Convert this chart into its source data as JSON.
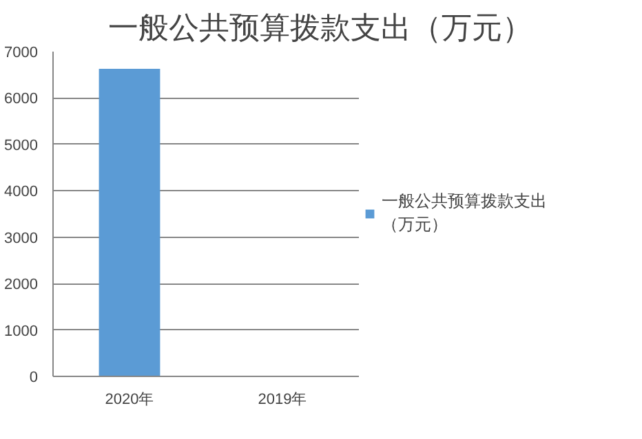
{
  "chart_data": {
    "type": "bar",
    "title": "一般公共预算拨款支出（万元）",
    "categories": [
      "2020年",
      "2019年"
    ],
    "series": [
      {
        "name": "一般公共预算拨款支出（万元）",
        "color": "#5b9bd5",
        "values": [
          6630,
          0
        ]
      }
    ],
    "ylim": [
      0,
      7000
    ],
    "yticks": [
      0,
      1000,
      2000,
      3000,
      4000,
      5000,
      6000,
      7000
    ],
    "grid": "y",
    "legend": "right"
  }
}
